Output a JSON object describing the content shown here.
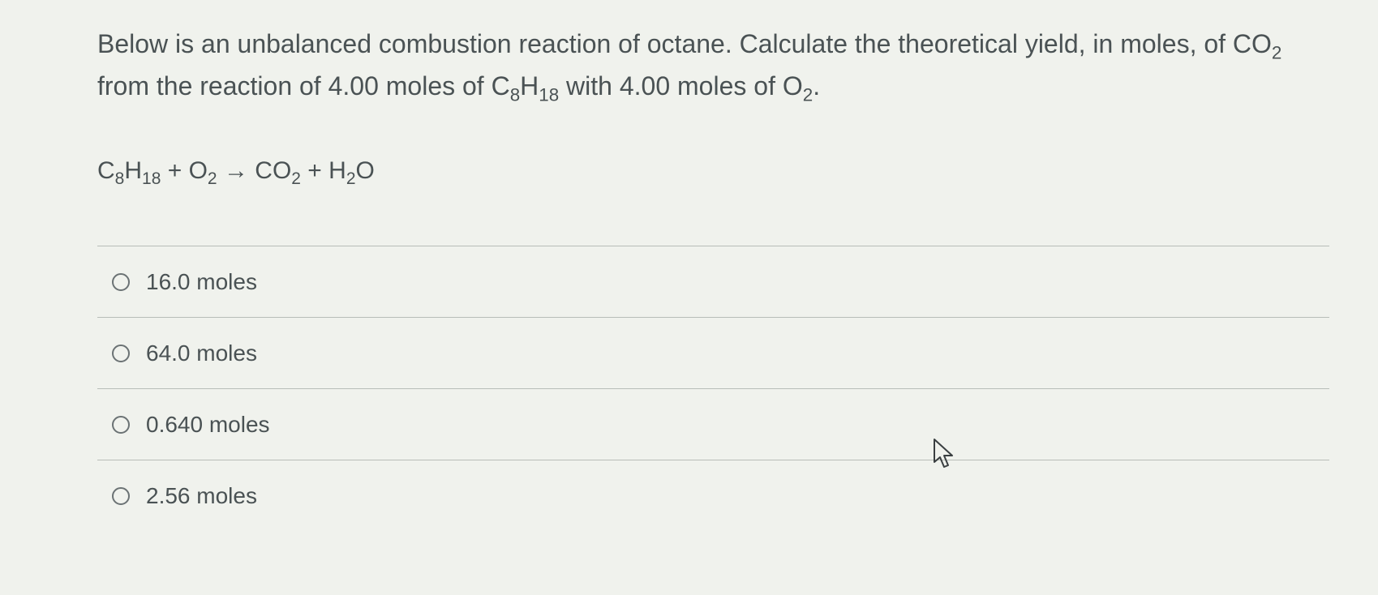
{
  "question": {
    "text_html": "Below is an unbalanced combustion reaction of octane. Calculate the theoretical yield, in moles, of CO<sub>2</sub> from the reaction of 4.00 moles of C<sub>8</sub>H<sub>18</sub> with 4.00 moles of O<sub>2</sub>."
  },
  "equation": {
    "text_html": "C<sub>8</sub>H<sub>18</sub> + O<sub>2</sub> → CO<sub>2</sub> + H<sub>2</sub>O"
  },
  "options": [
    {
      "label": "16.0 moles"
    },
    {
      "label": "64.0 moles"
    },
    {
      "label": "0.640 moles"
    },
    {
      "label": "2.56 moles"
    }
  ],
  "style": {
    "background_color": "#f0f2ed",
    "text_color": "#4a5254",
    "divider_color": "#b8bdb8",
    "radio_border_color": "#6b7274",
    "question_fontsize": 32,
    "equation_fontsize": 30,
    "option_fontsize": 28
  }
}
